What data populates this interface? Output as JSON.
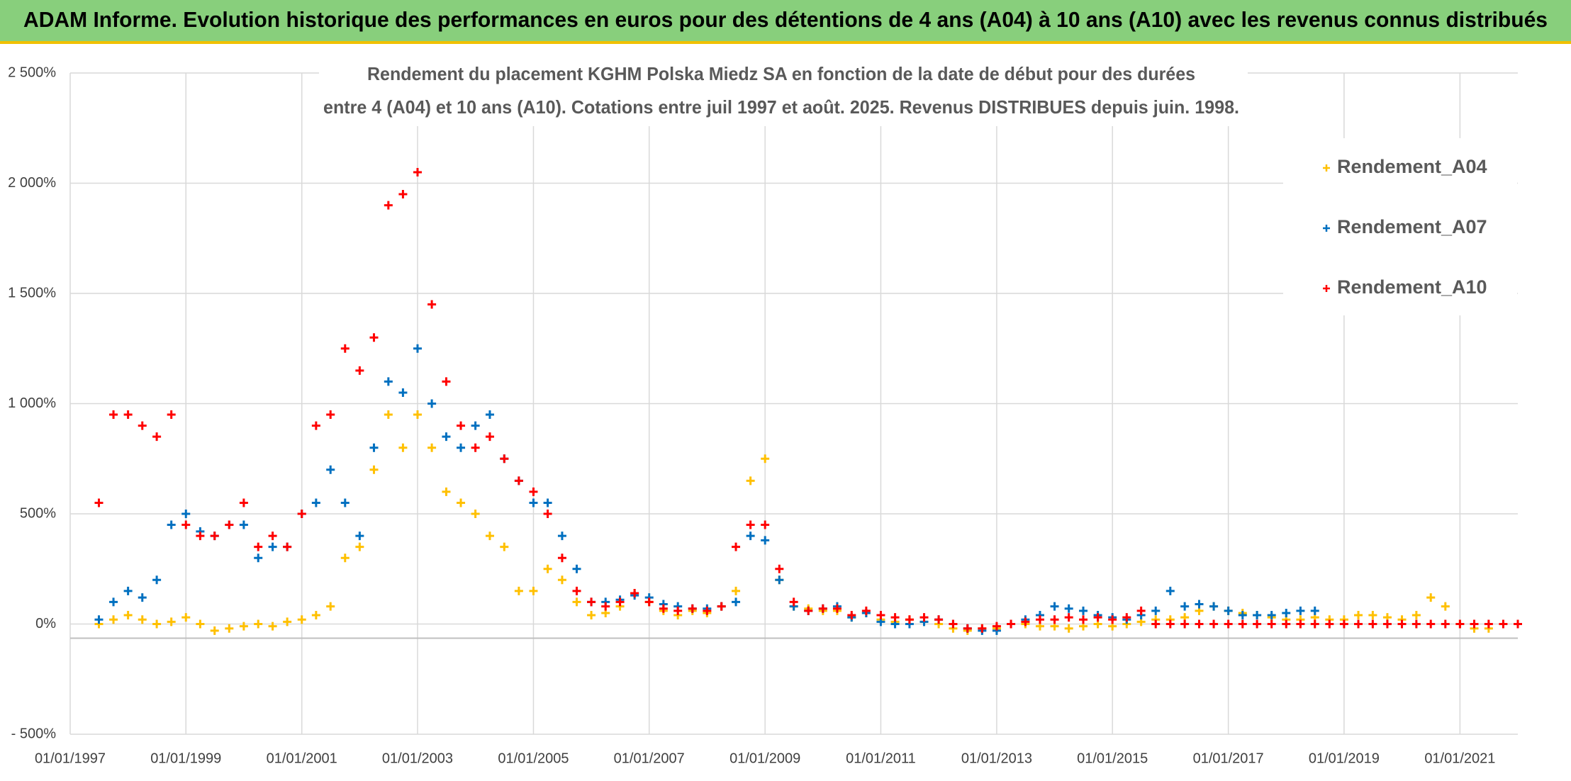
{
  "chart_data": {
    "type": "scatter",
    "title": "ADAM Informe. Evolution historique des performances en euros pour des détentions de 4 ans (A04) à 10 ans (A10) avec les revenus connus distribués",
    "subtitle": [
      "Rendement du placement KGHM Polska Miedz SA en fonction de la date de début pour des durées",
      "entre 4 (A04) et 10 ans (A10). Cotations entre juil 1997 et août. 2025. Revenus DISTRIBUES depuis juin. 1998."
    ],
    "x": [
      "1997-07-01",
      "1997-10-01",
      "1998-01-01",
      "1998-04-01",
      "1998-07-01",
      "1998-10-01",
      "1999-01-01",
      "1999-04-01",
      "1999-07-01",
      "1999-10-01",
      "2000-01-01",
      "2000-04-01",
      "2000-07-01",
      "2000-10-01",
      "2001-01-01",
      "2001-04-01",
      "2001-07-01",
      "2001-10-01",
      "2002-01-01",
      "2002-04-01",
      "2002-07-01",
      "2002-10-01",
      "2003-01-01",
      "2003-04-01",
      "2003-07-01",
      "2003-10-01",
      "2004-01-01",
      "2004-04-01",
      "2004-07-01",
      "2004-10-01",
      "2005-01-01",
      "2005-04-01",
      "2005-07-01",
      "2005-10-01",
      "2006-01-01",
      "2006-04-01",
      "2006-07-01",
      "2006-10-01",
      "2007-01-01",
      "2007-04-01",
      "2007-07-01",
      "2007-10-01",
      "2008-01-01",
      "2008-04-01",
      "2008-07-01",
      "2008-10-01",
      "2009-01-01",
      "2009-04-01",
      "2009-07-01",
      "2009-10-01",
      "2010-01-01",
      "2010-04-01",
      "2010-07-01",
      "2010-10-01",
      "2011-01-01",
      "2011-04-01",
      "2011-07-01",
      "2011-10-01",
      "2012-01-01",
      "2012-04-01",
      "2012-07-01",
      "2012-10-01",
      "2013-01-01",
      "2013-04-01",
      "2013-07-01",
      "2013-10-01",
      "2014-01-01",
      "2014-04-01",
      "2014-07-01",
      "2014-10-01",
      "2015-01-01",
      "2015-04-01",
      "2015-07-01",
      "2015-10-01",
      "2016-01-01",
      "2016-04-01",
      "2016-07-01",
      "2016-10-01",
      "2017-01-01",
      "2017-04-01",
      "2017-07-01",
      "2017-10-01",
      "2018-01-01",
      "2018-04-01",
      "2018-07-01",
      "2018-10-01",
      "2019-01-01",
      "2019-04-01",
      "2019-07-01",
      "2019-10-01",
      "2020-01-01",
      "2020-04-01",
      "2020-07-01",
      "2020-10-01",
      "2021-01-01",
      "2021-04-01",
      "2021-07-01",
      "2021-10-01",
      "2022-01-01"
    ],
    "series": [
      {
        "name": "Rendement_A04",
        "color": "#ffc000",
        "values": [
          0,
          20,
          40,
          20,
          0,
          10,
          30,
          0,
          -30,
          -20,
          -10,
          0,
          -10,
          10,
          20,
          40,
          80,
          300,
          350,
          700,
          950,
          800,
          950,
          800,
          600,
          550,
          500,
          400,
          350,
          150,
          150,
          250,
          200,
          100,
          40,
          50,
          80,
          140,
          100,
          60,
          40,
          60,
          50,
          80,
          150,
          650,
          750,
          200,
          80,
          70,
          60,
          60,
          30,
          50,
          20,
          10,
          20,
          10,
          0,
          -20,
          -30,
          -20,
          -20,
          0,
          0,
          -10,
          -10,
          -20,
          -10,
          0,
          -10,
          0,
          10,
          20,
          20,
          30,
          60,
          80,
          60,
          50,
          40,
          30,
          20,
          20,
          30,
          20,
          20,
          40,
          40,
          30,
          20,
          40,
          120,
          80,
          0,
          -20,
          -20,
          null,
          null
        ]
      },
      {
        "name": "Rendement_A07",
        "color": "#0070c0",
        "values": [
          20,
          100,
          150,
          120,
          200,
          450,
          500,
          420,
          400,
          450,
          450,
          300,
          350,
          350,
          500,
          550,
          700,
          550,
          400,
          800,
          1100,
          1050,
          1250,
          1000,
          850,
          800,
          900,
          950,
          750,
          650,
          550,
          550,
          400,
          250,
          100,
          100,
          110,
          130,
          120,
          90,
          80,
          70,
          70,
          80,
          100,
          400,
          380,
          200,
          80,
          60,
          70,
          80,
          30,
          50,
          10,
          0,
          0,
          10,
          20,
          0,
          -20,
          -30,
          -30,
          0,
          20,
          40,
          80,
          70,
          60,
          40,
          30,
          20,
          40,
          60,
          150,
          80,
          90,
          80,
          60,
          40,
          40,
          40,
          50,
          60,
          60,
          null,
          null,
          null,
          null,
          null,
          null,
          null,
          null,
          null,
          null,
          null,
          null,
          null,
          null
        ]
      },
      {
        "name": "Rendement_A10",
        "color": "#ff0000",
        "values": [
          550,
          950,
          950,
          900,
          850,
          950,
          450,
          400,
          400,
          450,
          550,
          350,
          400,
          350,
          500,
          900,
          950,
          1250,
          1150,
          1300,
          1900,
          1950,
          2050,
          1450,
          1100,
          900,
          800,
          850,
          750,
          650,
          600,
          500,
          300,
          150,
          100,
          80,
          100,
          140,
          100,
          70,
          60,
          70,
          60,
          80,
          350,
          450,
          450,
          250,
          100,
          60,
          70,
          70,
          40,
          60,
          40,
          30,
          20,
          30,
          20,
          0,
          -20,
          -20,
          -10,
          0,
          10,
          20,
          20,
          30,
          20,
          30,
          20,
          30,
          60,
          0,
          0,
          0,
          0,
          0,
          0,
          0,
          0,
          0,
          0,
          0,
          0,
          0,
          0,
          0,
          0,
          0,
          0,
          0,
          0,
          0,
          0,
          0,
          0,
          0,
          0
        ]
      }
    ],
    "xlim": [
      "1997-01-01",
      "2022-01-01"
    ],
    "xticks": [
      {
        "value": "1997-01-01",
        "label": "01/01/1997"
      },
      {
        "value": "1999-01-01",
        "label": "01/01/1999"
      },
      {
        "value": "2001-01-01",
        "label": "01/01/2001"
      },
      {
        "value": "2003-01-01",
        "label": "01/01/2003"
      },
      {
        "value": "2005-01-01",
        "label": "01/01/2005"
      },
      {
        "value": "2007-01-01",
        "label": "01/01/2007"
      },
      {
        "value": "2009-01-01",
        "label": "01/01/2009"
      },
      {
        "value": "2011-01-01",
        "label": "01/01/2011"
      },
      {
        "value": "2013-01-01",
        "label": "01/01/2013"
      },
      {
        "value": "2015-01-01",
        "label": "01/01/2015"
      },
      {
        "value": "2017-01-01",
        "label": "01/01/2017"
      },
      {
        "value": "2019-01-01",
        "label": "01/01/2019"
      },
      {
        "value": "2021-01-01",
        "label": "01/01/2021"
      }
    ],
    "ylim": [
      -500,
      2500
    ],
    "yticks": [
      {
        "value": -500,
        "label": "- 500%"
      },
      {
        "value": 0,
        "label": "0%"
      },
      {
        "value": 500,
        "label": "500%"
      },
      {
        "value": 1000,
        "label": "1 000%"
      },
      {
        "value": 1500,
        "label": "1 500%"
      },
      {
        "value": 2000,
        "label": "2 000%"
      },
      {
        "value": 2500,
        "label": "2 500%"
      }
    ],
    "grid": true
  }
}
